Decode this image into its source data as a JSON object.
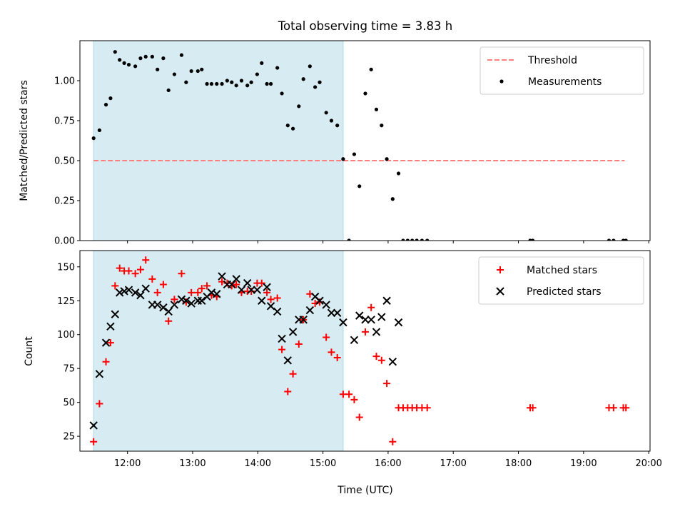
{
  "chart_data": {
    "title": "Total observing time = 3.83 h",
    "xlabel": "Time (UTC)",
    "x_unit": "hours UTC",
    "xlim": [
      11.27,
      20.02
    ],
    "x_ticks": [
      {
        "v": 12,
        "label": "12:00"
      },
      {
        "v": 13,
        "label": "13:00"
      },
      {
        "v": 14,
        "label": "14:00"
      },
      {
        "v": 15,
        "label": "15:00"
      },
      {
        "v": 16,
        "label": "16:00"
      },
      {
        "v": 17,
        "label": "17:00"
      },
      {
        "v": 18,
        "label": "18:00"
      },
      {
        "v": 19,
        "label": "19:00"
      },
      {
        "v": 20,
        "label": "20:00"
      }
    ],
    "shaded_interval": {
      "from": 11.48,
      "to": 15.31,
      "color": "#add8e6"
    },
    "panels": [
      {
        "type": "scatter",
        "ylabel": "Matched/Predicted stars",
        "ylim": [
          0,
          1.25
        ],
        "y_ticks": [
          {
            "v": 0,
            "label": "0.00"
          },
          {
            "v": 0.25,
            "label": "0.25"
          },
          {
            "v": 0.5,
            "label": "0.50"
          },
          {
            "v": 0.75,
            "label": "0.75"
          },
          {
            "v": 1.0,
            "label": "1.00"
          }
        ],
        "legend": "top-right",
        "series": [
          {
            "name": "Threshold",
            "kind": "dashed-line",
            "color": "#ff7f7f",
            "x": [
              11.48,
              19.63
            ],
            "y": [
              0.5,
              0.5
            ]
          },
          {
            "name": "Measurements",
            "kind": "dot",
            "color": "#000000",
            "points": [
              [
                11.48,
                0.64
              ],
              [
                11.57,
                0.69
              ],
              [
                11.67,
                0.85
              ],
              [
                11.74,
                0.89
              ],
              [
                11.81,
                1.18
              ],
              [
                11.88,
                1.13
              ],
              [
                11.95,
                1.11
              ],
              [
                12.02,
                1.1
              ],
              [
                12.12,
                1.09
              ],
              [
                12.2,
                1.14
              ],
              [
                12.28,
                1.15
              ],
              [
                12.38,
                1.15
              ],
              [
                12.46,
                1.07
              ],
              [
                12.55,
                1.14
              ],
              [
                12.63,
                0.94
              ],
              [
                12.72,
                1.04
              ],
              [
                12.83,
                1.16
              ],
              [
                12.9,
                0.99
              ],
              [
                12.98,
                1.06
              ],
              [
                13.08,
                1.06
              ],
              [
                13.14,
                1.07
              ],
              [
                13.22,
                0.98
              ],
              [
                13.29,
                0.98
              ],
              [
                13.37,
                0.98
              ],
              [
                13.45,
                0.98
              ],
              [
                13.53,
                1.0
              ],
              [
                13.6,
                0.99
              ],
              [
                13.67,
                0.97
              ],
              [
                13.75,
                1.0
              ],
              [
                13.84,
                0.97
              ],
              [
                13.9,
                0.99
              ],
              [
                13.99,
                1.04
              ],
              [
                14.06,
                1.11
              ],
              [
                14.14,
                0.98
              ],
              [
                14.2,
                0.98
              ],
              [
                14.3,
                1.08
              ],
              [
                14.37,
                0.92
              ],
              [
                14.46,
                0.72
              ],
              [
                14.54,
                0.7
              ],
              [
                14.63,
                0.84
              ],
              [
                14.7,
                1.01
              ],
              [
                14.8,
                1.09
              ],
              [
                14.88,
                0.96
              ],
              [
                14.95,
                0.99
              ],
              [
                15.05,
                0.8
              ],
              [
                15.13,
                0.75
              ],
              [
                15.22,
                0.72
              ],
              [
                15.31,
                0.51
              ],
              [
                15.4,
                0.0
              ],
              [
                15.48,
                0.54
              ],
              [
                15.56,
                0.34
              ],
              [
                15.65,
                0.92
              ],
              [
                15.74,
                1.07
              ],
              [
                15.82,
                0.82
              ],
              [
                15.9,
                0.72
              ],
              [
                15.98,
                0.51
              ],
              [
                16.07,
                0.26
              ],
              [
                16.16,
                0.42
              ],
              [
                16.23,
                0.0
              ],
              [
                16.3,
                0.0
              ],
              [
                16.37,
                0.0
              ],
              [
                16.44,
                0.0
              ],
              [
                16.52,
                0.0
              ],
              [
                16.6,
                0.0
              ],
              [
                18.18,
                0.0
              ],
              [
                18.22,
                0.0
              ],
              [
                19.39,
                0.0
              ],
              [
                19.46,
                0.0
              ],
              [
                19.61,
                0.0
              ],
              [
                19.65,
                0.0
              ]
            ]
          }
        ]
      },
      {
        "type": "scatter",
        "ylabel": "Count",
        "ylim": [
          14,
          162
        ],
        "y_ticks": [
          {
            "v": 25,
            "label": "25"
          },
          {
            "v": 50,
            "label": "50"
          },
          {
            "v": 75,
            "label": "75"
          },
          {
            "v": 100,
            "label": "100"
          },
          {
            "v": 125,
            "label": "125"
          },
          {
            "v": 150,
            "label": "150"
          }
        ],
        "legend": "top-right",
        "series": [
          {
            "name": "Matched stars",
            "kind": "plus",
            "color": "#ff0000",
            "points": [
              [
                11.48,
                21
              ],
              [
                11.57,
                49
              ],
              [
                11.67,
                80
              ],
              [
                11.74,
                94
              ],
              [
                11.81,
                136
              ],
              [
                11.88,
                149
              ],
              [
                11.95,
                147
              ],
              [
                12.02,
                147
              ],
              [
                12.12,
                145
              ],
              [
                12.2,
                148
              ],
              [
                12.28,
                155
              ],
              [
                12.38,
                141
              ],
              [
                12.46,
                131
              ],
              [
                12.55,
                137
              ],
              [
                12.63,
                110
              ],
              [
                12.72,
                126
              ],
              [
                12.83,
                145
              ],
              [
                12.9,
                124
              ],
              [
                12.98,
                131
              ],
              [
                13.08,
                131
              ],
              [
                13.14,
                134
              ],
              [
                13.22,
                136
              ],
              [
                13.29,
                129
              ],
              [
                13.37,
                128
              ],
              [
                13.45,
                139
              ],
              [
                13.53,
                138
              ],
              [
                13.6,
                136
              ],
              [
                13.67,
                137
              ],
              [
                13.75,
                131
              ],
              [
                13.84,
                132
              ],
              [
                13.9,
                132
              ],
              [
                13.99,
                138
              ],
              [
                14.06,
                138
              ],
              [
                14.14,
                131
              ],
              [
                14.2,
                126
              ],
              [
                14.3,
                127
              ],
              [
                14.37,
                89
              ],
              [
                14.46,
                58
              ],
              [
                14.54,
                71
              ],
              [
                14.63,
                93
              ],
              [
                14.7,
                111
              ],
              [
                14.8,
                130
              ],
              [
                14.88,
                123
              ],
              [
                14.95,
                124
              ],
              [
                15.05,
                98
              ],
              [
                15.13,
                87
              ],
              [
                15.22,
                83
              ],
              [
                15.31,
                56
              ],
              [
                15.4,
                56
              ],
              [
                15.48,
                52
              ],
              [
                15.56,
                39
              ],
              [
                15.65,
                102
              ],
              [
                15.74,
                120
              ],
              [
                15.82,
                84
              ],
              [
                15.9,
                81
              ],
              [
                15.98,
                64
              ],
              [
                16.07,
                21
              ],
              [
                16.16,
                46
              ],
              [
                16.23,
                46
              ],
              [
                16.3,
                46
              ],
              [
                16.37,
                46
              ],
              [
                16.44,
                46
              ],
              [
                16.52,
                46
              ],
              [
                16.6,
                46
              ],
              [
                18.18,
                46
              ],
              [
                18.22,
                46
              ],
              [
                19.39,
                46
              ],
              [
                19.46,
                46
              ],
              [
                19.61,
                46
              ],
              [
                19.65,
                46
              ]
            ]
          },
          {
            "name": "Predicted stars",
            "kind": "cross",
            "color": "#000000",
            "points": [
              [
                11.48,
                33
              ],
              [
                11.57,
                71
              ],
              [
                11.67,
                94
              ],
              [
                11.74,
                106
              ],
              [
                11.81,
                115
              ],
              [
                11.88,
                131
              ],
              [
                11.95,
                132
              ],
              [
                12.02,
                133
              ],
              [
                12.12,
                131
              ],
              [
                12.2,
                129
              ],
              [
                12.28,
                134
              ],
              [
                12.38,
                122
              ],
              [
                12.46,
                122
              ],
              [
                12.55,
                120
              ],
              [
                12.63,
                117
              ],
              [
                12.72,
                122
              ],
              [
                12.83,
                126
              ],
              [
                12.9,
                125
              ],
              [
                12.98,
                123
              ],
              [
                13.08,
                125
              ],
              [
                13.14,
                125
              ],
              [
                13.22,
                128
              ],
              [
                13.29,
                131
              ],
              [
                13.37,
                130
              ],
              [
                13.45,
                143
              ],
              [
                13.53,
                137
              ],
              [
                13.6,
                137
              ],
              [
                13.67,
                141
              ],
              [
                13.75,
                133
              ],
              [
                13.84,
                138
              ],
              [
                13.9,
                133
              ],
              [
                13.99,
                133
              ],
              [
                14.06,
                125
              ],
              [
                14.14,
                135
              ],
              [
                14.2,
                121
              ],
              [
                14.3,
                117
              ],
              [
                14.37,
                97
              ],
              [
                14.46,
                81
              ],
              [
                14.54,
                102
              ],
              [
                14.63,
                111
              ],
              [
                14.7,
                111
              ],
              [
                14.8,
                118
              ],
              [
                14.88,
                128
              ],
              [
                14.95,
                125
              ],
              [
                15.05,
                122
              ],
              [
                15.13,
                116
              ],
              [
                15.22,
                116
              ],
              [
                15.31,
                109
              ],
              [
                15.48,
                96
              ],
              [
                15.56,
                114
              ],
              [
                15.65,
                111
              ],
              [
                15.74,
                111
              ],
              [
                15.82,
                102
              ],
              [
                15.9,
                113
              ],
              [
                15.98,
                125
              ],
              [
                16.07,
                80
              ],
              [
                16.16,
                109
              ]
            ]
          }
        ]
      }
    ]
  }
}
